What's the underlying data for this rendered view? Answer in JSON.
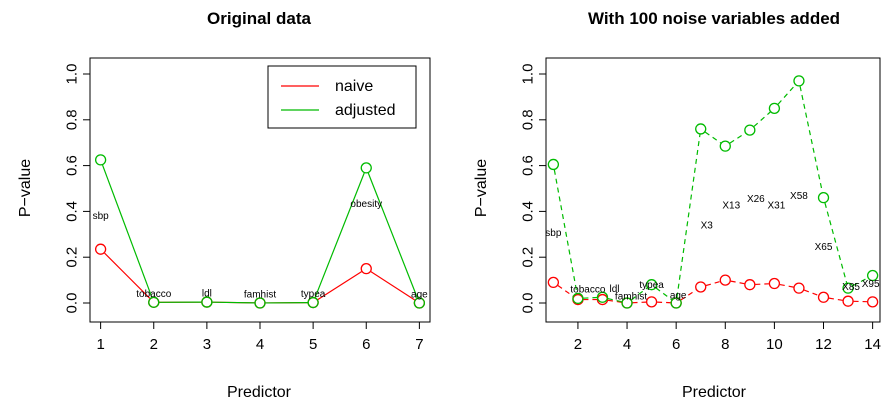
{
  "chart_data": [
    {
      "type": "line",
      "title": "Original data",
      "xlabel": "Predictor",
      "ylabel": "P−value",
      "xlim": [
        0.8,
        7.2
      ],
      "ylim": [
        0,
        1.0
      ],
      "x_ticks": [
        1,
        2,
        3,
        4,
        5,
        6,
        7
      ],
      "y_ticks": [
        "0.0",
        "0.2",
        "0.4",
        "0.6",
        "0.8",
        "1.0"
      ],
      "x": [
        1,
        2,
        3,
        4,
        5,
        6,
        7
      ],
      "point_labels": [
        "sbp",
        "tobacco",
        "ldl",
        "famhist",
        "typea",
        "obesity",
        "age"
      ],
      "series": [
        {
          "name": "naive",
          "color": "#ff0000",
          "line": "solid",
          "values": [
            0.235,
            0.003,
            0.004,
            0.0,
            0.002,
            0.15,
            0.0
          ]
        },
        {
          "name": "adjusted",
          "color": "#00bb00",
          "line": "solid",
          "values": [
            0.625,
            0.003,
            0.004,
            0.0,
            0.002,
            0.59,
            0.0
          ]
        }
      ],
      "legend": {
        "position": "top-right",
        "entries": [
          "naive",
          "adjusted"
        ]
      }
    },
    {
      "type": "line",
      "title": "With 100 noise variables added",
      "xlabel": "Predictor",
      "ylabel": "P−value",
      "xlim": [
        0.7,
        14.3
      ],
      "ylim": [
        0,
        1.0
      ],
      "x_ticks": [
        2,
        4,
        6,
        8,
        10,
        12,
        14
      ],
      "y_ticks": [
        "0.0",
        "0.2",
        "0.4",
        "0.6",
        "0.8",
        "1.0"
      ],
      "x": [
        1,
        2,
        3,
        4,
        5,
        6,
        7,
        8,
        9,
        10,
        11,
        12,
        13,
        14
      ],
      "point_labels": [
        "sbp",
        "tobacco",
        "ldl",
        "famhist",
        "typea",
        "age",
        "X3",
        "X13",
        "X26",
        "X31",
        "X58",
        "X65",
        "X85",
        "X95"
      ],
      "series": [
        {
          "name": "naive",
          "color": "#ff0000",
          "line": "dashed",
          "values": [
            0.09,
            0.015,
            0.015,
            0.0,
            0.005,
            0.0,
            0.07,
            0.1,
            0.08,
            0.085,
            0.065,
            0.025,
            0.008,
            0.005
          ]
        },
        {
          "name": "adjusted",
          "color": "#00bb00",
          "line": "dashed",
          "values": [
            0.605,
            0.02,
            0.025,
            0.0,
            0.08,
            0.0,
            0.76,
            0.685,
            0.755,
            0.85,
            0.97,
            0.46,
            0.065,
            0.12
          ]
        }
      ]
    }
  ]
}
